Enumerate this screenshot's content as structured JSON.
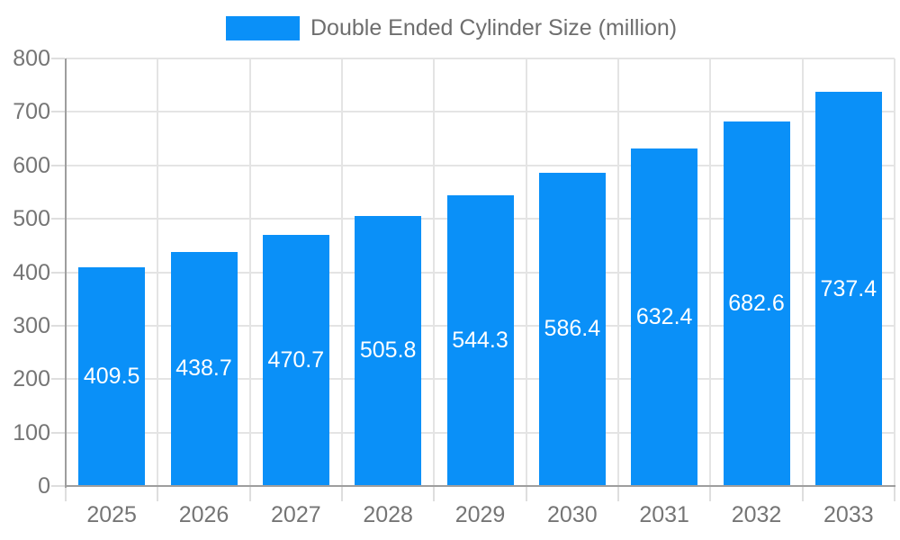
{
  "legend": {
    "label": "Double Ended Cylinder Size (million)",
    "swatch_color": "#0a90f8"
  },
  "chart_data": {
    "type": "bar",
    "title": "Double Ended Cylinder Size (million)",
    "series_name": "Double Ended Cylinder Size (million)",
    "categories": [
      "2025",
      "2026",
      "2027",
      "2028",
      "2029",
      "2030",
      "2031",
      "2032",
      "2033"
    ],
    "values": [
      409.5,
      438.7,
      470.7,
      505.8,
      544.3,
      586.4,
      632.4,
      682.6,
      737.4
    ],
    "xlabel": "",
    "ylabel": "",
    "ylim": [
      0,
      800
    ],
    "yticks": [
      0,
      100,
      200,
      300,
      400,
      500,
      600,
      700,
      800
    ],
    "grid": true,
    "legend_position": "top",
    "bar_color": "#0a90f8",
    "bar_label_color": "#ffffff",
    "axis_text_color": "#757575",
    "gridline_color": "#e4e4e4",
    "axis_line_color": "#9e9e9e"
  }
}
